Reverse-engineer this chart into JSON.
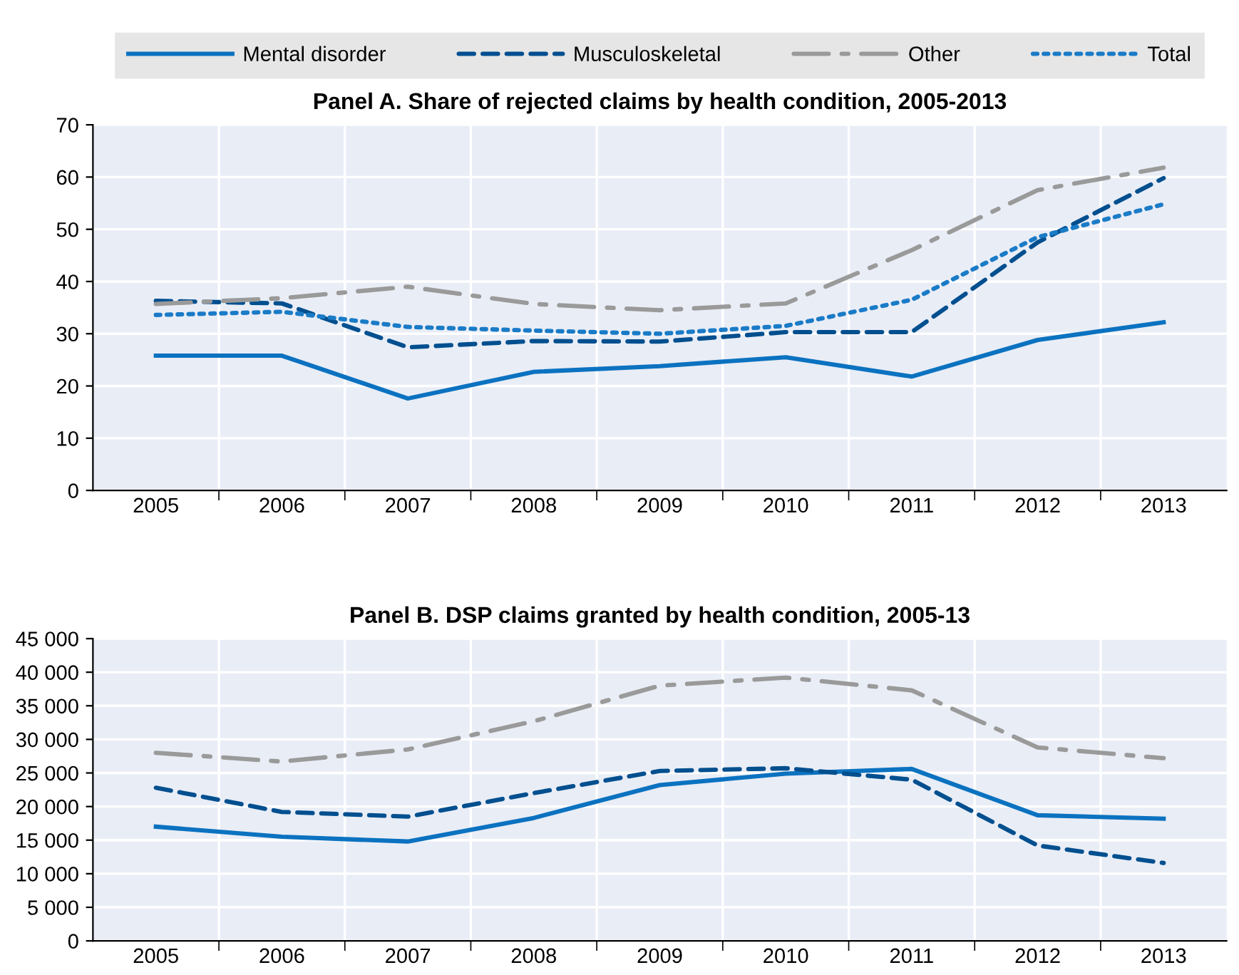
{
  "chart_data": [
    {
      "type": "line",
      "title": "Panel A. Share of rejected claims by health condition, 2005-2013",
      "categories": [
        "2005",
        "2006",
        "2007",
        "2008",
        "2009",
        "2010",
        "2011",
        "2012",
        "2013"
      ],
      "ylim": [
        0,
        70
      ],
      "yticks": [
        0,
        10,
        20,
        30,
        40,
        50,
        60,
        70
      ],
      "grid": true,
      "legend": "top",
      "series": [
        {
          "name": "Mental disorder",
          "color": "#0b72c0",
          "line_style": "solid",
          "values": [
            25.8,
            25.8,
            17.6,
            22.7,
            23.8,
            25.5,
            21.8,
            28.8,
            32.2
          ]
        },
        {
          "name": "Musculoskeletal",
          "color": "#004f8f",
          "line_style": "dashed",
          "values": [
            36.3,
            35.8,
            27.4,
            28.6,
            28.5,
            30.3,
            30.3,
            47.5,
            59.8
          ]
        },
        {
          "name": "Other",
          "color": "#9a9a9a",
          "line_style": "dashdot",
          "values": [
            35.7,
            36.8,
            39,
            35.7,
            34.5,
            35.8,
            46,
            57.5,
            61.8
          ]
        },
        {
          "name": "Total",
          "color": "#1a7bc7",
          "line_style": "dotted",
          "values": [
            33.6,
            34.2,
            31.3,
            30.6,
            30,
            31.5,
            36.5,
            48.5,
            54.8
          ]
        }
      ]
    },
    {
      "type": "line",
      "title": "Panel B. DSP claims granted by health condition, 2005-13",
      "categories": [
        "2005",
        "2006",
        "2007",
        "2008",
        "2009",
        "2010",
        "2011",
        "2012",
        "2013"
      ],
      "ylim": [
        0,
        45000
      ],
      "yticks": [
        0,
        {
          "value": 5000,
          "label": "5 000"
        },
        {
          "value": 10000,
          "label": "10 000"
        },
        {
          "value": 15000,
          "label": "15 000"
        },
        {
          "value": 20000,
          "label": "20 000"
        },
        {
          "value": 25000,
          "label": "25 000"
        },
        {
          "value": 30000,
          "label": "30 000"
        },
        {
          "value": 35000,
          "label": "35 000"
        },
        {
          "value": 40000,
          "label": "40 000"
        },
        {
          "value": 45000,
          "label": "45 000"
        }
      ],
      "grid": true,
      "series": [
        {
          "color": "#0b72c0",
          "line_style": "solid",
          "values": [
            17000,
            15500,
            14800,
            18300,
            23200,
            24900,
            25600,
            18700,
            18200
          ]
        },
        {
          "color": "#004f8f",
          "line_style": "dashed",
          "values": [
            22800,
            19200,
            18500,
            22000,
            25300,
            25700,
            24000,
            14200,
            11600
          ]
        },
        {
          "color": "#9a9a9a",
          "line_style": "dashdot",
          "values": [
            28000,
            26700,
            28500,
            32700,
            38000,
            39200,
            37300,
            28800,
            27200
          ]
        }
      ]
    }
  ]
}
